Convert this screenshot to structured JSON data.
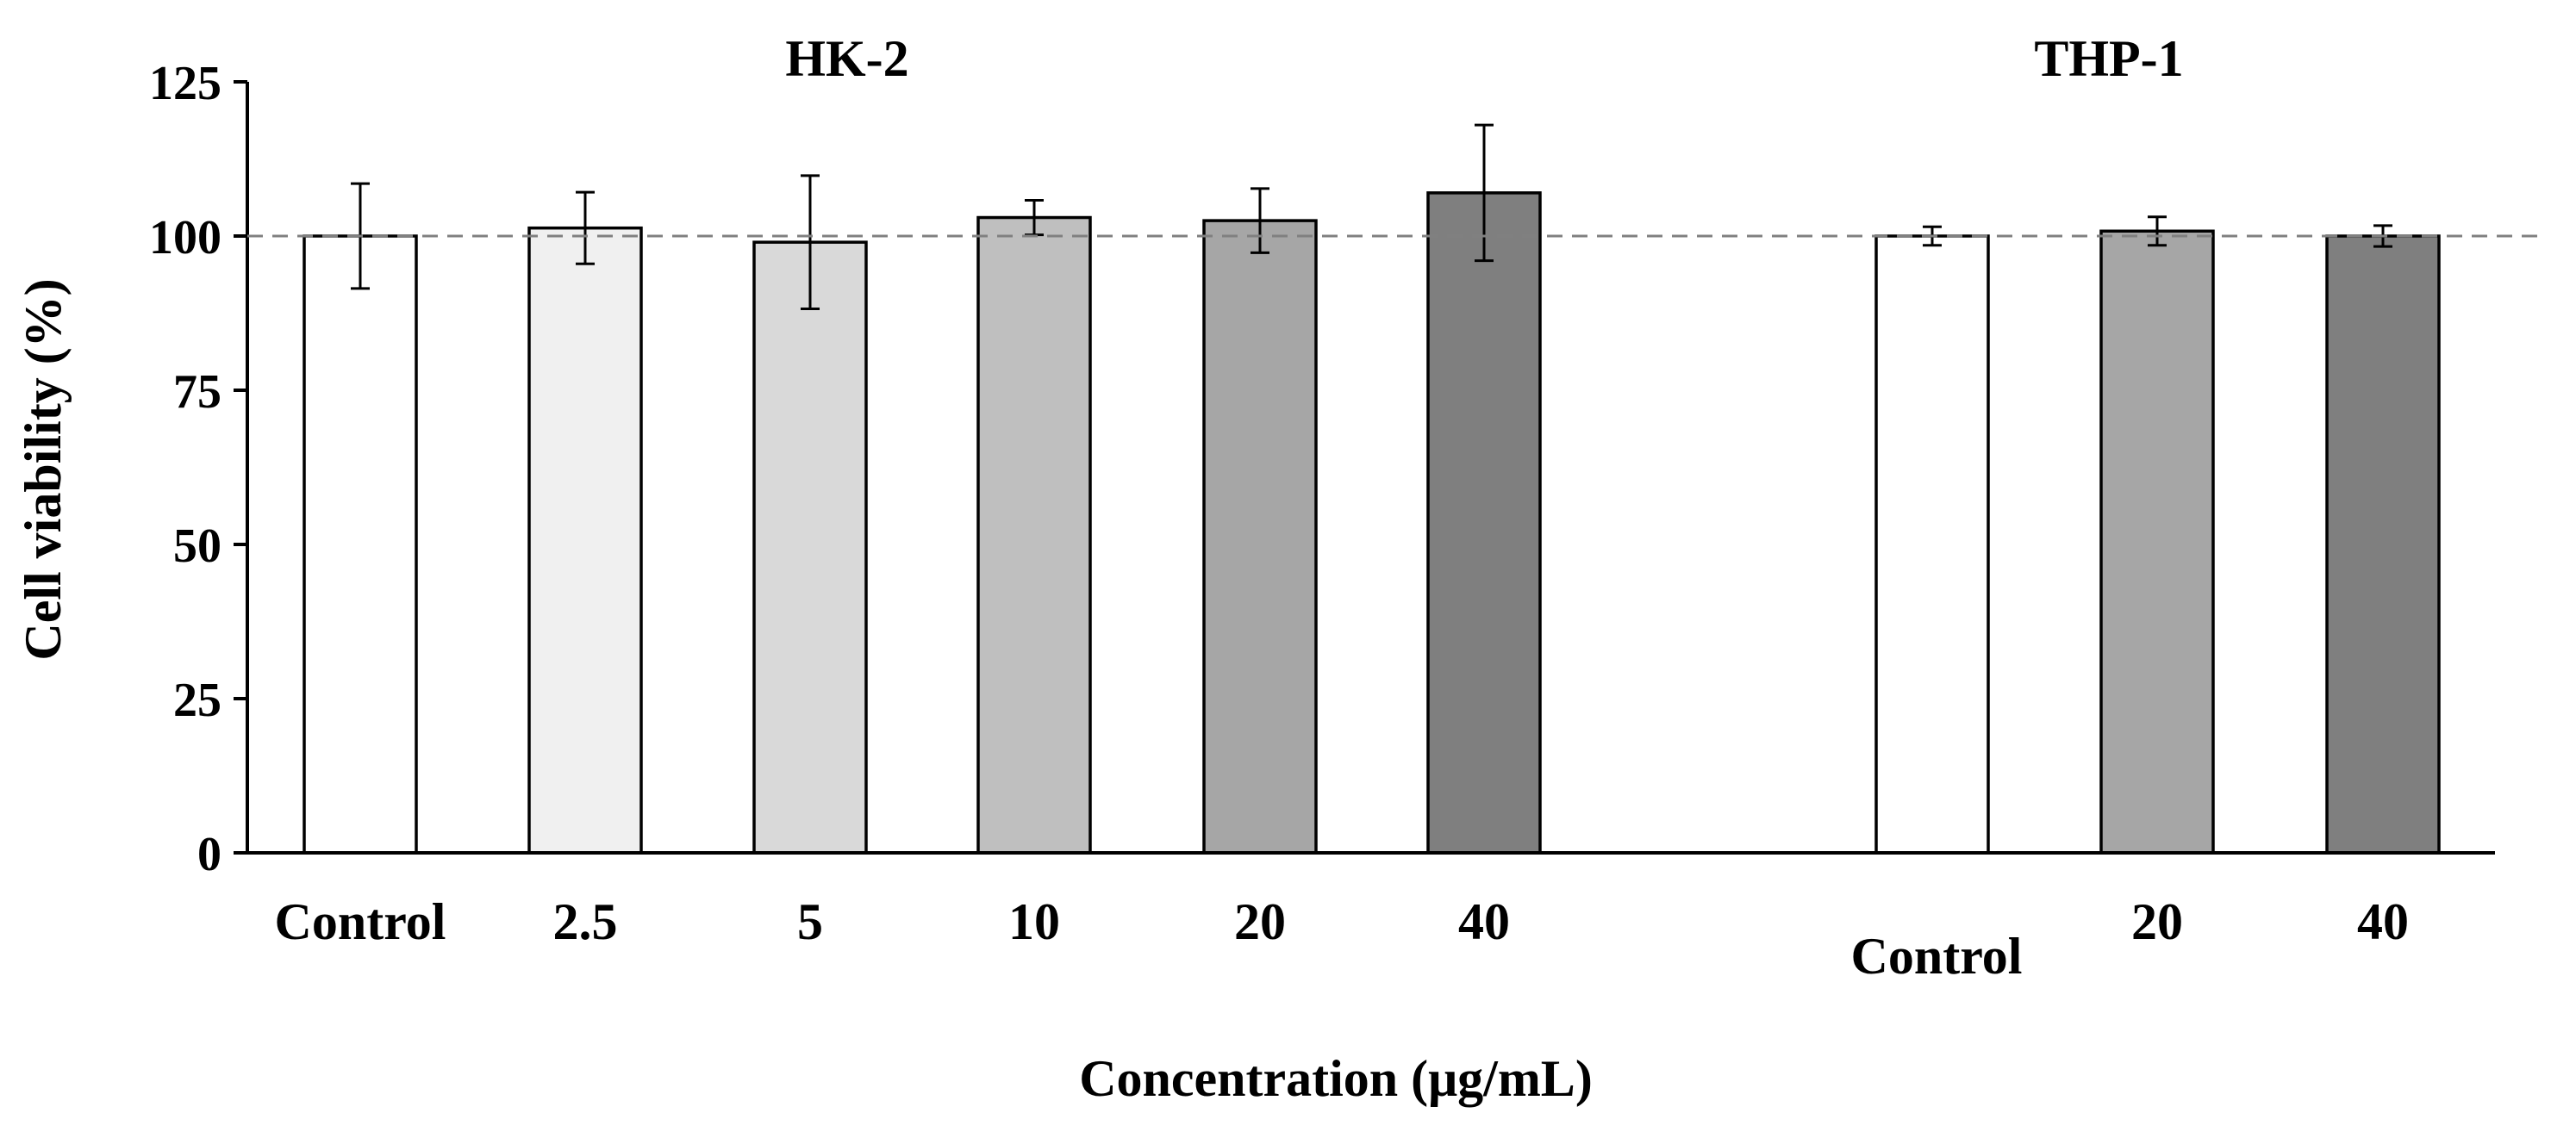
{
  "chart_data": {
    "type": "bar",
    "title": "",
    "ylabel": "Cell viability (%)",
    "xlabel": "Concentration (μg/mL)",
    "ylim": [
      0,
      125
    ],
    "yticks": [
      0,
      25,
      50,
      75,
      100,
      125
    ],
    "reference_line": 100,
    "error_bars": true,
    "groups": [
      {
        "name": "HK-2",
        "categories": [
          "Control",
          "2.5",
          "5",
          "10",
          "20",
          "40"
        ],
        "values": [
          100,
          101.3,
          99,
          103,
          102.5,
          107
        ],
        "errors": [
          8.5,
          5.8,
          10.8,
          2.8,
          5.2,
          11
        ],
        "colors": [
          "#ffffff",
          "#f0f0f0",
          "#d9d9d9",
          "#bfbfbf",
          "#a6a6a6",
          "#7f7f7f"
        ]
      },
      {
        "name": "THP-1",
        "categories": [
          "Control",
          "20",
          "40"
        ],
        "values": [
          100,
          100.8,
          100
        ],
        "errors": [
          1.5,
          2.3,
          1.7
        ],
        "colors": [
          "#ffffff",
          "#a6a6a6",
          "#7f7f7f"
        ]
      }
    ]
  }
}
